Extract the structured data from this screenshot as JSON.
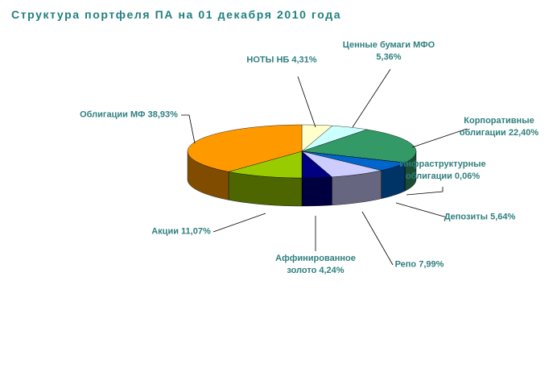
{
  "chart_data": {
    "type": "pie3d",
    "title": "Структура портфеля ПА на 01 декабря 2010 года",
    "categories": [
      "НОТЫ НБ",
      "Ценные бумаги МФО",
      "Корпоративные облигации",
      "Инфраструктурные облигации",
      "Депозиты",
      "Репо",
      "Аффинированное золото",
      "Акции",
      "Облигации МФ"
    ],
    "values": [
      4.31,
      5.36,
      22.4,
      0.06,
      5.64,
      7.99,
      4.24,
      11.07,
      38.93
    ],
    "value_labels": [
      "4,31%",
      "5,36%",
      "22,40%",
      "0,06%",
      "5,64%",
      "7,99%",
      "4,24%",
      "11,07%",
      "38,93%"
    ],
    "colors": [
      "#ffffcc",
      "#ccffff",
      "#339966",
      "#000080",
      "#0066cc",
      "#ccccff",
      "#000080",
      "#99cc00",
      "#ff9900"
    ]
  }
}
